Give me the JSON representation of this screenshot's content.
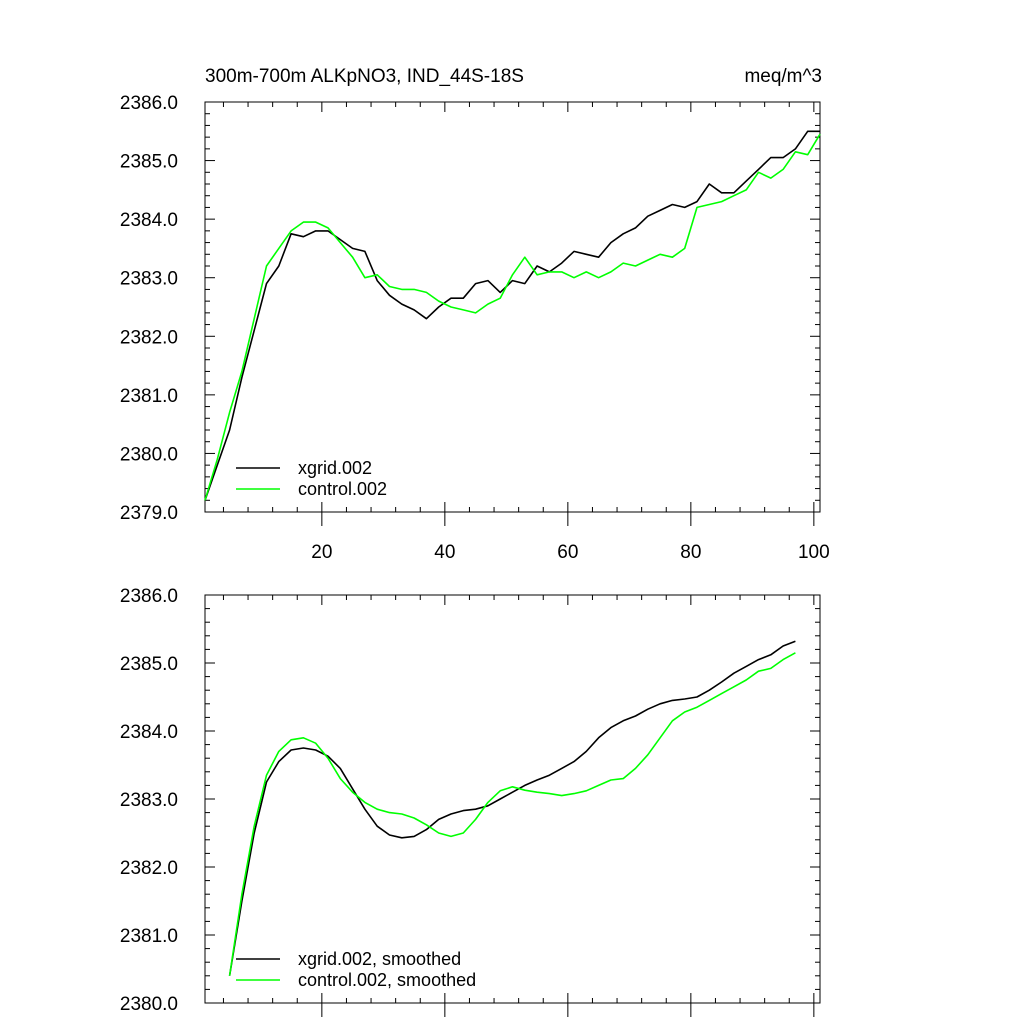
{
  "chart_data": [
    {
      "type": "line",
      "title": "300m-700m ALKpNO3, IND_44S-18S",
      "units": "meq/m^3",
      "xlim": [
        1,
        101
      ],
      "ylim": [
        2379.0,
        2386.0
      ],
      "xticks": [
        "20",
        "40",
        "60",
        "80",
        "100"
      ],
      "yticks": [
        "2379.0",
        "2380.0",
        "2381.0",
        "2382.0",
        "2383.0",
        "2384.0",
        "2385.0",
        "2386.0"
      ],
      "legend_position": "bottom-left",
      "series": [
        {
          "name": "xgrid.002",
          "color": "#000000",
          "x": [
            1,
            3,
            5,
            7,
            9,
            11,
            13,
            15,
            17,
            19,
            21,
            23,
            25,
            27,
            29,
            31,
            33,
            35,
            37,
            39,
            41,
            43,
            45,
            47,
            49,
            51,
            53,
            55,
            57,
            59,
            61,
            63,
            65,
            67,
            69,
            71,
            73,
            75,
            77,
            79,
            81,
            83,
            85,
            87,
            89,
            91,
            93,
            95,
            97,
            99,
            101
          ],
          "y": [
            2379.2,
            2379.8,
            2380.4,
            2381.3,
            2382.1,
            2382.9,
            2383.2,
            2383.75,
            2383.7,
            2383.8,
            2383.8,
            2383.65,
            2383.5,
            2383.45,
            2382.95,
            2382.7,
            2382.55,
            2382.45,
            2382.3,
            2382.5,
            2382.65,
            2382.65,
            2382.9,
            2382.95,
            2382.75,
            2382.95,
            2382.9,
            2383.2,
            2383.1,
            2383.25,
            2383.45,
            2383.4,
            2383.35,
            2383.6,
            2383.75,
            2383.85,
            2384.05,
            2384.15,
            2384.25,
            2384.2,
            2384.3,
            2384.6,
            2384.45,
            2384.45,
            2384.65,
            2384.85,
            2385.05,
            2385.05,
            2385.2,
            2385.5,
            2385.5
          ]
        },
        {
          "name": "control.002",
          "color": "#00ff00",
          "x": [
            1,
            3,
            5,
            7,
            9,
            11,
            13,
            15,
            17,
            19,
            21,
            23,
            25,
            27,
            29,
            31,
            33,
            35,
            37,
            39,
            41,
            43,
            45,
            47,
            49,
            51,
            53,
            55,
            57,
            59,
            61,
            63,
            65,
            67,
            69,
            71,
            73,
            75,
            77,
            79,
            81,
            83,
            85,
            87,
            89,
            91,
            93,
            95,
            97,
            99,
            101
          ],
          "y": [
            2379.2,
            2379.9,
            2380.7,
            2381.4,
            2382.3,
            2383.2,
            2383.5,
            2383.8,
            2383.95,
            2383.95,
            2383.85,
            2383.6,
            2383.35,
            2383.0,
            2383.05,
            2382.85,
            2382.8,
            2382.8,
            2382.75,
            2382.6,
            2382.5,
            2382.45,
            2382.4,
            2382.55,
            2382.65,
            2383.05,
            2383.35,
            2383.05,
            2383.1,
            2383.1,
            2383.0,
            2383.1,
            2383.0,
            2383.1,
            2383.25,
            2383.2,
            2383.3,
            2383.4,
            2383.35,
            2383.5,
            2384.2,
            2384.25,
            2384.3,
            2384.4,
            2384.5,
            2384.8,
            2384.7,
            2384.85,
            2385.15,
            2385.1,
            2385.45
          ]
        }
      ]
    },
    {
      "type": "line",
      "title": "",
      "xlim": [
        1,
        101
      ],
      "ylim": [
        2380.0,
        2386.0
      ],
      "xticks": [],
      "yticks": [
        "2380.0",
        "2381.0",
        "2382.0",
        "2383.0",
        "2384.0",
        "2385.0",
        "2386.0"
      ],
      "legend_position": "bottom-left",
      "series": [
        {
          "name": "xgrid.002, smoothed",
          "color": "#000000",
          "x": [
            5,
            7,
            9,
            11,
            13,
            15,
            17,
            19,
            21,
            23,
            25,
            27,
            29,
            31,
            33,
            35,
            37,
            39,
            41,
            43,
            45,
            47,
            49,
            51,
            53,
            55,
            57,
            59,
            61,
            63,
            65,
            67,
            69,
            71,
            73,
            75,
            77,
            79,
            81,
            83,
            85,
            87,
            89,
            91,
            93,
            95,
            97
          ],
          "y": [
            2380.4,
            2381.5,
            2382.5,
            2383.25,
            2383.55,
            2383.72,
            2383.75,
            2383.72,
            2383.63,
            2383.45,
            2383.15,
            2382.85,
            2382.6,
            2382.47,
            2382.43,
            2382.45,
            2382.55,
            2382.7,
            2382.78,
            2382.83,
            2382.85,
            2382.9,
            2383.0,
            2383.1,
            2383.2,
            2383.28,
            2383.35,
            2383.45,
            2383.55,
            2383.7,
            2383.9,
            2384.05,
            2384.15,
            2384.22,
            2384.32,
            2384.4,
            2384.45,
            2384.47,
            2384.5,
            2384.6,
            2384.72,
            2384.85,
            2384.95,
            2385.05,
            2385.12,
            2385.25,
            2385.32
          ]
        },
        {
          "name": "control.002, smoothed",
          "color": "#00ff00",
          "x": [
            5,
            7,
            9,
            11,
            13,
            15,
            17,
            19,
            21,
            23,
            25,
            27,
            29,
            31,
            33,
            35,
            37,
            39,
            41,
            43,
            45,
            47,
            49,
            51,
            53,
            55,
            57,
            59,
            61,
            63,
            65,
            67,
            69,
            71,
            73,
            75,
            77,
            79,
            81,
            83,
            85,
            87,
            89,
            91,
            93,
            95,
            97
          ],
          "y": [
            2380.4,
            2381.6,
            2382.6,
            2383.35,
            2383.7,
            2383.87,
            2383.9,
            2383.82,
            2383.6,
            2383.3,
            2383.1,
            2382.95,
            2382.85,
            2382.8,
            2382.78,
            2382.72,
            2382.62,
            2382.5,
            2382.45,
            2382.5,
            2382.7,
            2382.95,
            2383.12,
            2383.18,
            2383.13,
            2383.1,
            2383.08,
            2383.05,
            2383.08,
            2383.12,
            2383.2,
            2383.28,
            2383.3,
            2383.45,
            2383.65,
            2383.9,
            2384.15,
            2384.28,
            2384.35,
            2384.45,
            2384.55,
            2384.65,
            2384.75,
            2384.88,
            2384.92,
            2385.05,
            2385.15
          ]
        }
      ]
    }
  ]
}
